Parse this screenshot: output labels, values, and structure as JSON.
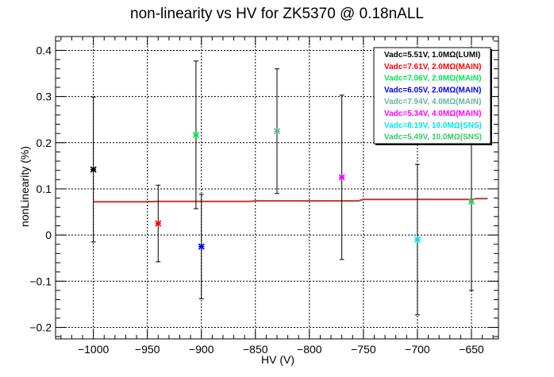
{
  "chart_data": {
    "type": "scatter",
    "title": "non-linearity vs HV for ZK5370 @ 0.18nALL",
    "xlabel": "HV (V)",
    "ylabel": "nonLinearity (%)",
    "xlim": [
      -1035,
      -625
    ],
    "ylim": [
      -0.225,
      0.43
    ],
    "x_ticks": [
      -1000,
      -950,
      -900,
      -850,
      -800,
      -750,
      -700,
      -650
    ],
    "y_ticks": [
      -0.2,
      -0.1,
      0,
      0.1,
      0.2,
      0.3,
      0.4
    ],
    "x_tick_labels": [
      "−1000",
      "−950",
      "−900",
      "−850",
      "−800",
      "−750",
      "−700",
      "−650"
    ],
    "y_tick_labels": [
      "−0.2",
      "−0.1",
      "0",
      "0.1",
      "0.2",
      "0.3",
      "0.4"
    ],
    "grid": true,
    "legend_position": "top-right",
    "series": [
      {
        "name": "Vadc=5.51V, 1.0MΩ(LUMI)",
        "color": "#000000",
        "x": -1000,
        "y": 0.142,
        "err": 0.157
      },
      {
        "name": "Vadc=7.61V, 2.0MΩ(MAIN)",
        "color": "#ff0000",
        "x": -940,
        "y": 0.025,
        "err": 0.083
      },
      {
        "name": "Vadc=7.06V, 2.0MΩ(MAIN)",
        "color": "#00e64d",
        "x": -905,
        "y": 0.217,
        "err": 0.16
      },
      {
        "name": "Vadc=6.05V, 2.0MΩ(MAIN)",
        "color": "#0000ff",
        "x": -900,
        "y": -0.025,
        "err": 0.113
      },
      {
        "name": "Vadc=7.94V, 4.0MΩ(MAIN)",
        "color": "#66b3a0",
        "x": -830,
        "y": 0.225,
        "err": 0.135
      },
      {
        "name": "Vadc=5.34V, 4.0MΩ(MAIN)",
        "color": "#ff00ff",
        "x": -770,
        "y": 0.125,
        "err": 0.178
      },
      {
        "name": "Vadc=8.19V, 10.0MΩ(SNS)",
        "color": "#00e6e6",
        "x": -700,
        "y": -0.01,
        "err": 0.163
      },
      {
        "name": "Vadc=5.49V, 10.0MΩ(SNS)",
        "color": "#33cc66",
        "x": -650,
        "y": 0.072,
        "err": 0.192
      }
    ],
    "fit_line": {
      "color": "#c0392b",
      "x": [
        -1000,
        -955,
        -940,
        -855,
        -850,
        -755,
        -750,
        -650,
        -645,
        -635
      ],
      "y": [
        0.072,
        0.072,
        0.073,
        0.073,
        0.074,
        0.074,
        0.077,
        0.077,
        0.079,
        0.079
      ]
    }
  }
}
